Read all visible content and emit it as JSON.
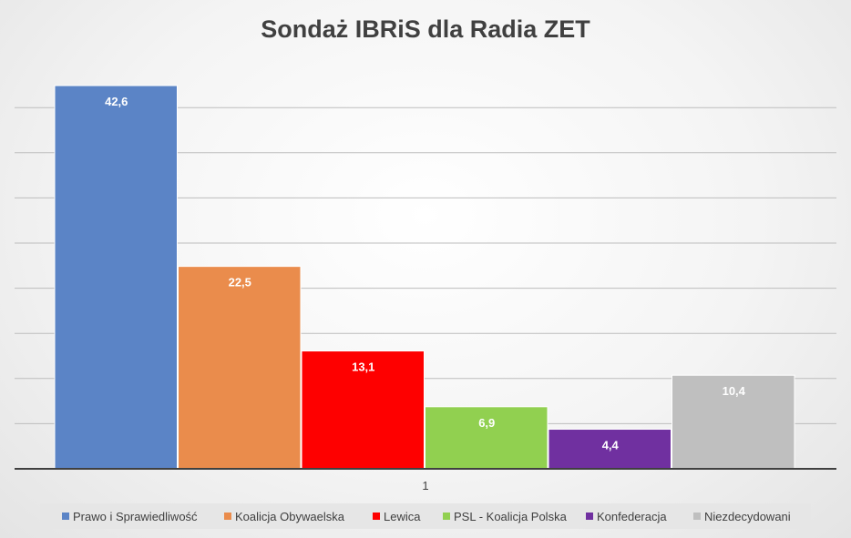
{
  "chart_data": {
    "type": "bar",
    "title": "Sondaż IBRiS dla Radia ZET",
    "categories": [
      "1"
    ],
    "xlabel": "",
    "ylabel": "",
    "ylim": [
      0,
      42.6
    ],
    "grid": true,
    "legend_position": "bottom",
    "series": [
      {
        "name": "Prawo i Sprawiedliwość",
        "values": [
          42.6
        ],
        "label": "42,6",
        "color": "#5b84c6"
      },
      {
        "name": "Koalicja Obywaelska",
        "values": [
          22.5
        ],
        "label": "22,5",
        "color": "#ea8c4c"
      },
      {
        "name": "Lewica",
        "values": [
          13.1
        ],
        "label": "13,1",
        "color": "#fe0000"
      },
      {
        "name": "PSL - Koalicja Polska",
        "values": [
          6.9
        ],
        "label": "6,9",
        "color": "#91d050"
      },
      {
        "name": "Konfederacja",
        "values": [
          4.4
        ],
        "label": "4,4",
        "color": "#7030a0"
      },
      {
        "name": "Niezdecydowani",
        "values": [
          10.4
        ],
        "label": "10,4",
        "color": "#bfbfbf"
      }
    ]
  }
}
